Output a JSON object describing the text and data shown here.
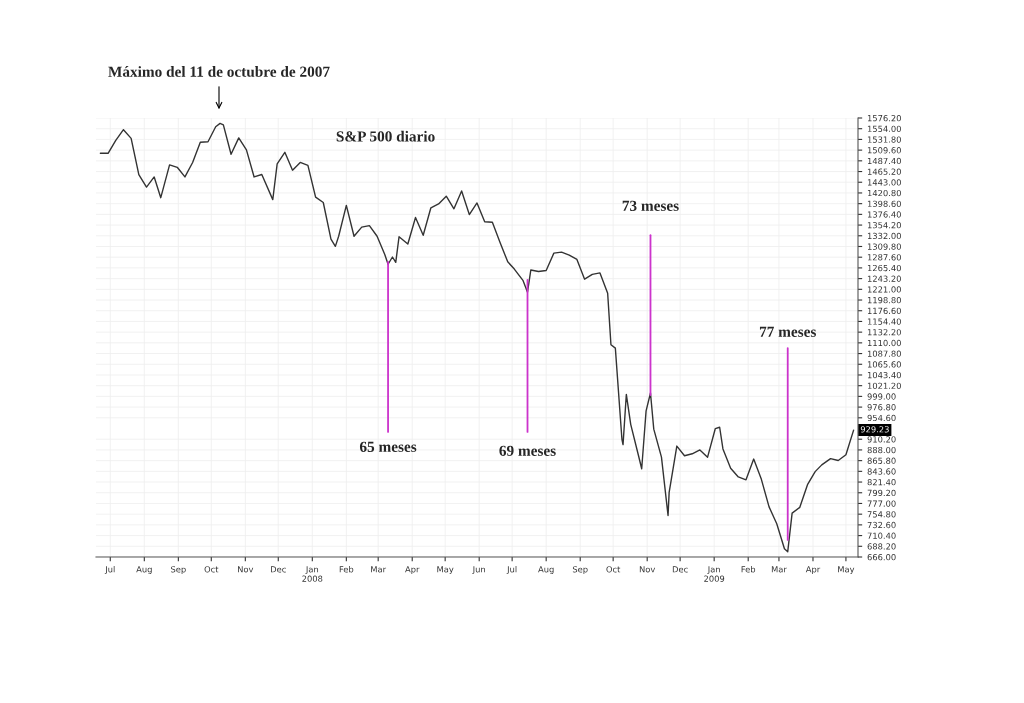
{
  "chart_data": {
    "type": "line",
    "title": "S&P 500 diario",
    "x": [
      "2007-06-22",
      "2007-06-29",
      "2007-07-06",
      "2007-07-13",
      "2007-07-20",
      "2007-07-27",
      "2007-08-03",
      "2007-08-10",
      "2007-08-16",
      "2007-08-24",
      "2007-08-31",
      "2007-09-07",
      "2007-09-14",
      "2007-09-21",
      "2007-09-28",
      "2007-10-05",
      "2007-10-09",
      "2007-10-12",
      "2007-10-19",
      "2007-10-26",
      "2007-11-02",
      "2007-11-09",
      "2007-11-16",
      "2007-11-26",
      "2007-11-30",
      "2007-12-07",
      "2007-12-14",
      "2007-12-21",
      "2007-12-28",
      "2008-01-04",
      "2008-01-11",
      "2008-01-18",
      "2008-01-22",
      "2008-01-25",
      "2008-02-01",
      "2008-02-08",
      "2008-02-15",
      "2008-02-22",
      "2008-02-29",
      "2008-03-07",
      "2008-03-10",
      "2008-03-14",
      "2008-03-17",
      "2008-03-20",
      "2008-03-28",
      "2008-04-04",
      "2008-04-11",
      "2008-04-18",
      "2008-04-25",
      "2008-05-02",
      "2008-05-09",
      "2008-05-16",
      "2008-05-23",
      "2008-05-30",
      "2008-06-06",
      "2008-06-13",
      "2008-06-20",
      "2008-06-27",
      "2008-07-03",
      "2008-07-11",
      "2008-07-15",
      "2008-07-18",
      "2008-07-25",
      "2008-08-01",
      "2008-08-08",
      "2008-08-15",
      "2008-08-22",
      "2008-08-29",
      "2008-09-05",
      "2008-09-12",
      "2008-09-19",
      "2008-09-26",
      "2008-09-29",
      "2008-10-03",
      "2008-10-09",
      "2008-10-10",
      "2008-10-13",
      "2008-10-17",
      "2008-10-24",
      "2008-10-27",
      "2008-10-31",
      "2008-11-04",
      "2008-11-07",
      "2008-11-14",
      "2008-11-20",
      "2008-11-21",
      "2008-11-28",
      "2008-12-05",
      "2008-12-12",
      "2008-12-19",
      "2008-12-26",
      "2009-01-02",
      "2009-01-06",
      "2009-01-09",
      "2009-01-16",
      "2009-01-23",
      "2009-01-30",
      "2009-02-06",
      "2009-02-13",
      "2009-02-20",
      "2009-02-27",
      "2009-03-06",
      "2009-03-09",
      "2009-03-13",
      "2009-03-20",
      "2009-03-27",
      "2009-04-03",
      "2009-04-09",
      "2009-04-17",
      "2009-04-24",
      "2009-05-01",
      "2009-05-08"
    ],
    "series": [
      {
        "color": "#333333",
        "values": [
          1503,
          1503,
          1530,
          1552,
          1534,
          1459,
          1433,
          1454,
          1411,
          1479,
          1474,
          1454,
          1484,
          1526,
          1527,
          1558,
          1565,
          1562,
          1501,
          1535,
          1510,
          1454,
          1459,
          1407,
          1481,
          1505,
          1468,
          1484,
          1478,
          1412,
          1401,
          1325,
          1310,
          1331,
          1395,
          1331,
          1350,
          1353,
          1331,
          1293,
          1273,
          1288,
          1277,
          1330,
          1315,
          1370,
          1333,
          1390,
          1398,
          1414,
          1388,
          1425,
          1376,
          1400,
          1361,
          1360,
          1318,
          1278,
          1263,
          1239,
          1215,
          1261,
          1258,
          1260,
          1296,
          1298,
          1292,
          1283,
          1242,
          1252,
          1255,
          1213,
          1106,
          1099,
          910,
          899,
          1003,
          941,
          877,
          849,
          969,
          1006,
          931,
          873,
          752,
          800,
          896,
          876,
          880,
          888,
          873,
          932,
          935,
          890,
          850,
          832,
          826,
          869,
          827,
          770,
          735,
          683,
          677,
          757,
          769,
          816,
          843,
          857,
          870,
          866,
          878,
          929
        ]
      }
    ],
    "annotations": [
      "Máximo del 11 de octubre de 2007",
      {
        "text": "929.23",
        "x": "2009-05-08",
        "y": 929.23
      }
    ],
    "ref_lines": [
      {
        "axis": "x",
        "value": "2008-03-10",
        "label": "65 meses",
        "color": "#cc33cc"
      },
      {
        "axis": "x",
        "value": "2008-07-15",
        "label": "69 meses",
        "color": "#cc33cc"
      },
      {
        "axis": "x",
        "value": "2008-11-04",
        "label": "73 meses",
        "color": "#cc33cc"
      },
      {
        "axis": "x",
        "value": "2009-03-09",
        "label": "77 meses",
        "color": "#cc33cc"
      }
    ],
    "xlim": [
      "2007-06-18",
      "2009-05-12"
    ],
    "xticks": [
      {
        "value": "2007-07-01",
        "label": "Jul"
      },
      {
        "value": "2007-08-01",
        "label": "Aug"
      },
      {
        "value": "2007-09-01",
        "label": "Sep"
      },
      {
        "value": "2007-10-01",
        "label": "Oct"
      },
      {
        "value": "2007-11-01",
        "label": "Nov"
      },
      {
        "value": "2007-12-01",
        "label": "Dec"
      },
      {
        "value": "2008-01-01",
        "label": "Jan\n2008"
      },
      {
        "value": "2008-02-01",
        "label": "Feb"
      },
      {
        "value": "2008-03-01",
        "label": "Mar"
      },
      {
        "value": "2008-04-01",
        "label": "Apr"
      },
      {
        "value": "2008-05-01",
        "label": "May"
      },
      {
        "value": "2008-06-01",
        "label": "Jun"
      },
      {
        "value": "2008-07-01",
        "label": "Jul"
      },
      {
        "value": "2008-08-01",
        "label": "Aug"
      },
      {
        "value": "2008-09-01",
        "label": "Sep"
      },
      {
        "value": "2008-10-01",
        "label": "Oct"
      },
      {
        "value": "2008-11-01",
        "label": "Nov"
      },
      {
        "value": "2008-12-01",
        "label": "Dec"
      },
      {
        "value": "2009-01-01",
        "label": "Jan\n2009"
      },
      {
        "value": "2009-02-01",
        "label": "Feb"
      },
      {
        "value": "2009-03-01",
        "label": "Mar"
      },
      {
        "value": "2009-04-01",
        "label": "Apr"
      },
      {
        "value": "2009-05-01",
        "label": "May"
      }
    ],
    "ylim": [
      666.0,
      1576.2
    ],
    "yticks": [
      {
        "value": 666.0,
        "label": "666.00"
      },
      {
        "value": 688.2,
        "label": "688.20"
      },
      {
        "value": 710.4,
        "label": "710.40"
      },
      {
        "value": 732.6,
        "label": "732.60"
      },
      {
        "value": 754.8,
        "label": "754.80"
      },
      {
        "value": 777.0,
        "label": "777.00"
      },
      {
        "value": 799.2,
        "label": "799.20"
      },
      {
        "value": 821.4,
        "label": "821.40"
      },
      {
        "value": 843.6,
        "label": "843.60"
      },
      {
        "value": 865.8,
        "label": "865.80"
      },
      {
        "value": 888.0,
        "label": "888.00"
      },
      {
        "value": 910.2,
        "label": "910.20"
      },
      {
        "value": 954.6,
        "label": "954.60"
      },
      {
        "value": 976.8,
        "label": "976.80"
      },
      {
        "value": 999.0,
        "label": "999.00"
      },
      {
        "value": 1021.2,
        "label": "1021.20"
      },
      {
        "value": 1043.4,
        "label": "1043.40"
      },
      {
        "value": 1065.6,
        "label": "1065.60"
      },
      {
        "value": 1087.8,
        "label": "1087.80"
      },
      {
        "value": 1110.0,
        "label": "1110.00"
      },
      {
        "value": 1132.2,
        "label": "1132.20"
      },
      {
        "value": 1154.4,
        "label": "1154.40"
      },
      {
        "value": 1176.6,
        "label": "1176.60"
      },
      {
        "value": 1198.8,
        "label": "1198.80"
      },
      {
        "value": 1221.0,
        "label": "1221.00"
      },
      {
        "value": 1243.2,
        "label": "1243.20"
      },
      {
        "value": 1265.4,
        "label": "1265.40"
      },
      {
        "value": 1287.6,
        "label": "1287.60"
      },
      {
        "value": 1309.8,
        "label": "1309.80"
      },
      {
        "value": 1332.0,
        "label": "1332.00"
      },
      {
        "value": 1354.2,
        "label": "1354.20"
      },
      {
        "value": 1376.4,
        "label": "1376.40"
      },
      {
        "value": 1398.6,
        "label": "1398.60"
      },
      {
        "value": 1420.8,
        "label": "1420.80"
      },
      {
        "value": 1443.0,
        "label": "1443.00"
      },
      {
        "value": 1465.2,
        "label": "1465.20"
      },
      {
        "value": 1487.4,
        "label": "1487.40"
      },
      {
        "value": 1509.6,
        "label": "1509.60"
      },
      {
        "value": 1531.8,
        "label": "1531.80"
      },
      {
        "value": 1554.0,
        "label": "1554.00"
      },
      {
        "value": 1576.2,
        "label": "1576.20"
      }
    ],
    "grid": true
  }
}
